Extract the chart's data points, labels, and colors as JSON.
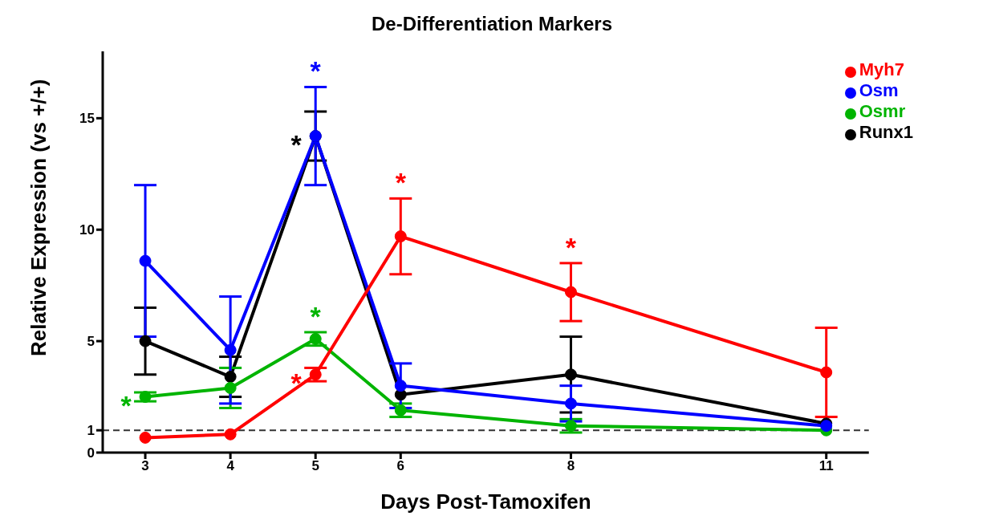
{
  "chart_data": {
    "type": "line",
    "title": "De-Differentiation Markers",
    "xlabel": "Days Post-Tamoxifen",
    "ylabel": "Relative Expression (vs +/+)",
    "x": [
      3,
      4,
      5,
      6,
      8,
      11
    ],
    "xlim": [
      2.5,
      11.5
    ],
    "xticks": [
      3,
      4,
      5,
      6,
      8,
      11
    ],
    "ylim": [
      0,
      18
    ],
    "yticks": [
      0,
      1,
      5,
      10,
      15
    ],
    "series": [
      {
        "name": "Myh7",
        "color": "#ff0000",
        "values": [
          0.67,
          0.82,
          3.5,
          9.7,
          7.2,
          3.6
        ],
        "errors": [
          null,
          null,
          0.3,
          1.7,
          1.3,
          2.0
        ],
        "value_labels": [
          null,
          null,
          "*",
          "*",
          "*",
          null
        ]
      },
      {
        "name": "Osm",
        "color": "#0000ff",
        "values": [
          8.6,
          4.6,
          14.2,
          3.0,
          2.2,
          1.2
        ],
        "errors": [
          3.4,
          2.4,
          2.2,
          1.0,
          0.8,
          null
        ],
        "value_labels": [
          null,
          null,
          "*",
          null,
          null,
          null
        ]
      },
      {
        "name": "Osmr",
        "color": "#00b400",
        "values": [
          2.5,
          2.9,
          5.1,
          1.9,
          1.2,
          1.0
        ],
        "errors": [
          0.2,
          0.9,
          0.3,
          0.3,
          0.3,
          null
        ],
        "value_labels": [
          "*",
          null,
          "*",
          null,
          null,
          null
        ]
      },
      {
        "name": "Runx1",
        "color": "#000000",
        "values": [
          5.0,
          3.4,
          14.2,
          2.6,
          3.5,
          1.3
        ],
        "errors": [
          1.5,
          0.9,
          1.1,
          null,
          1.7,
          null
        ],
        "value_labels": [
          null,
          null,
          "*",
          null,
          null,
          null
        ]
      }
    ],
    "ref_lines": [
      {
        "axis": "y",
        "value": 1,
        "color": "#333333",
        "line_style": "dashed"
      }
    ],
    "legend": "top right",
    "marker": "circle",
    "line_style": "solid",
    "grid": false
  }
}
